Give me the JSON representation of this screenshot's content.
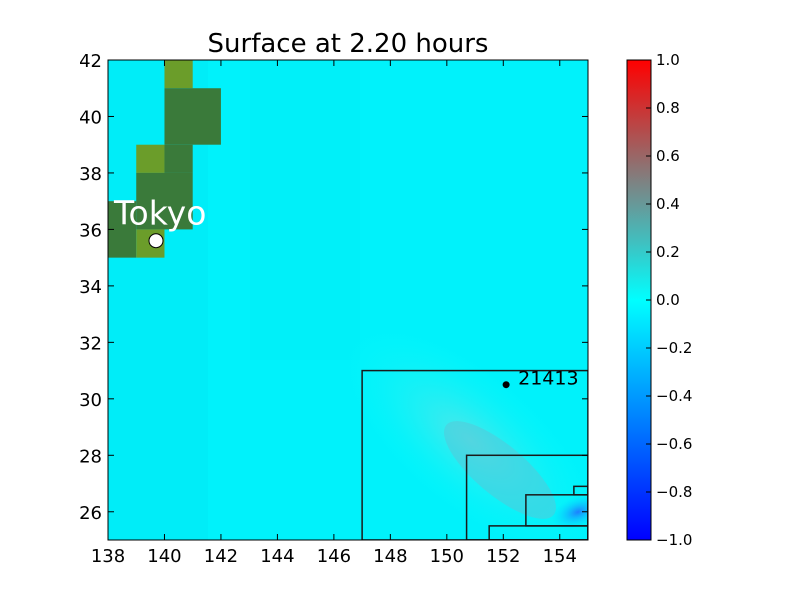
{
  "chart_data": {
    "type": "heatmap",
    "title": "Surface at 2.20 hours",
    "xlabel": "",
    "ylabel": "",
    "xlim": [
      138,
      155
    ],
    "ylim": [
      25,
      42
    ],
    "x_ticks": [
      138,
      140,
      142,
      144,
      146,
      148,
      150,
      152,
      154
    ],
    "y_ticks": [
      26,
      28,
      30,
      32,
      34,
      36,
      38,
      40,
      42
    ],
    "colorbar": {
      "range": [
        -1.0,
        1.0
      ],
      "ticks": [
        "1.0",
        "0.8",
        "0.6",
        "0.4",
        "0.2",
        "0.0",
        "−0.2",
        "−0.4",
        "−0.6",
        "−0.8",
        "−1.0"
      ],
      "tick_values": [
        1.0,
        0.8,
        0.6,
        0.4,
        0.2,
        0.0,
        -0.2,
        -0.4,
        -0.6,
        -0.8,
        -1.0
      ]
    },
    "background_value": 0.0,
    "land_cells": [
      {
        "x0": 140,
        "x1": 141,
        "y0": 41,
        "y1": 42,
        "color": "#6b9d2a"
      },
      {
        "x0": 140,
        "x1": 142,
        "y0": 39,
        "y1": 41,
        "color": "#3a7a3a"
      },
      {
        "x0": 139,
        "x1": 140,
        "y0": 38,
        "y1": 39,
        "color": "#6b9d2a"
      },
      {
        "x0": 140,
        "x1": 141,
        "y0": 38,
        "y1": 39,
        "color": "#3a7a3a"
      },
      {
        "x0": 139,
        "x1": 141,
        "y0": 36,
        "y1": 38,
        "color": "#3a7a3a"
      },
      {
        "x0": 138,
        "x1": 139,
        "y0": 35,
        "y1": 37,
        "color": "#3a7a3a"
      },
      {
        "x0": 139,
        "x1": 140,
        "y0": 35,
        "y1": 36,
        "color": "#6b9d2a"
      }
    ],
    "refinement_boxes": [
      {
        "x0": 147.0,
        "x1": 155.0,
        "y0": 25.0,
        "y1": 31.0
      },
      {
        "x0": 150.7,
        "x1": 155.0,
        "y0": 25.0,
        "y1": 28.0
      },
      {
        "x0": 151.5,
        "x1": 155.0,
        "y0": 25.0,
        "y1": 25.5
      },
      {
        "x0": 152.8,
        "x1": 155.0,
        "y0": 25.5,
        "y1": 26.6
      },
      {
        "x0": 154.5,
        "x1": 155.0,
        "y0": 26.6,
        "y1": 26.9
      }
    ],
    "annotations": [
      {
        "label": "Tokyo",
        "x": 139.7,
        "y": 35.6,
        "marker": "open-circle"
      },
      {
        "label": "21413",
        "x": 152.1,
        "y": 30.5,
        "marker": "dot"
      }
    ]
  }
}
